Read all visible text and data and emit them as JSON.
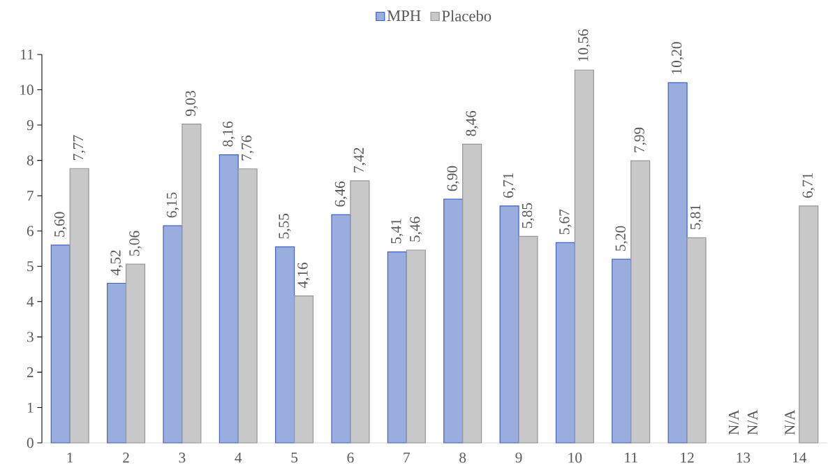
{
  "chart_data": {
    "type": "bar",
    "categories": [
      "1",
      "2",
      "3",
      "4",
      "5",
      "6",
      "7",
      "8",
      "9",
      "10",
      "11",
      "12",
      "13",
      "14"
    ],
    "series": [
      {
        "name": "MPH",
        "color": "#9aaddf",
        "values": [
          5.6,
          4.52,
          6.15,
          8.16,
          5.55,
          6.46,
          5.41,
          6.9,
          6.71,
          5.67,
          5.2,
          10.2,
          null,
          null
        ],
        "value_labels": [
          "5,60",
          "4,52",
          "6,15",
          "8,16",
          "5,55",
          "6,46",
          "5,41",
          "6,90",
          "6,71",
          "5,67",
          "5,20",
          "10,20",
          "N/A",
          "N/A"
        ]
      },
      {
        "name": "Placebo",
        "color": "#c8c8c8",
        "values": [
          7.77,
          5.06,
          9.03,
          7.76,
          4.16,
          7.42,
          5.46,
          8.46,
          5.85,
          10.56,
          7.99,
          5.81,
          null,
          6.71
        ],
        "value_labels": [
          "7,77",
          "5,06",
          "9,03",
          "7,76",
          "4,16",
          "7,42",
          "5,46",
          "8,46",
          "5,85",
          "10,56",
          "7,99",
          "5,81",
          "N/A",
          "6,71"
        ]
      }
    ],
    "ylim": [
      0,
      11
    ],
    "yticks": [
      0,
      1,
      2,
      3,
      4,
      5,
      6,
      7,
      8,
      9,
      10,
      11
    ],
    "legend": "top"
  }
}
